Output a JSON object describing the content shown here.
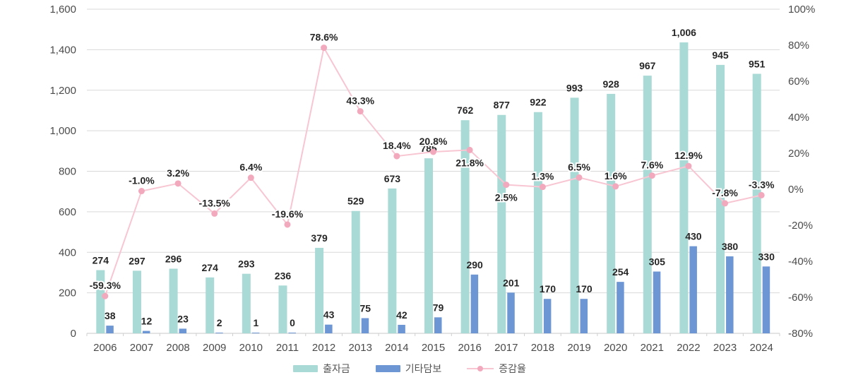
{
  "chart_data": {
    "type": "bar",
    "subtype": "grouped-bars-with-line",
    "title": "",
    "categories": [
      "2006",
      "2007",
      "2008",
      "2009",
      "2010",
      "2011",
      "2012",
      "2013",
      "2014",
      "2015",
      "2016",
      "2017",
      "2018",
      "2019",
      "2020",
      "2021",
      "2022",
      "2023",
      "2024"
    ],
    "series": [
      {
        "name": "출자금",
        "type": "bar",
        "color": "#a9dad6",
        "values": [
          274,
          297,
          296,
          274,
          293,
          236,
          379,
          529,
          673,
          785,
          762,
          877,
          922,
          993,
          928,
          967,
          1006,
          945,
          951
        ]
      },
      {
        "name": "기타담보",
        "type": "bar",
        "color": "#6d96d4",
        "values": [
          38,
          12,
          23,
          2,
          1,
          0,
          43,
          75,
          42,
          79,
          290,
          201,
          170,
          170,
          254,
          305,
          430,
          380,
          330
        ]
      },
      {
        "name": "증감율",
        "type": "line",
        "color": "#f8c6d3",
        "marker_color": "#f3a9bd",
        "axis": "right",
        "values": [
          -59.3,
          -1.0,
          3.2,
          -13.5,
          6.4,
          -19.6,
          78.6,
          43.3,
          18.4,
          20.8,
          21.8,
          2.5,
          1.3,
          6.5,
          1.6,
          7.6,
          12.9,
          -7.8,
          -3.3
        ],
        "label_side": [
          "above",
          "above",
          "above",
          "above",
          "above",
          "above",
          "above",
          "above",
          "above",
          "above",
          "below",
          "below",
          "above",
          "above",
          "above",
          "above",
          "above",
          "above",
          "above"
        ]
      }
    ],
    "left_axis": {
      "min": 0,
      "max": 1600,
      "step": 200,
      "tick_labels": [
        "1,600",
        "1,400",
        "1,200",
        "1,000",
        "800",
        "600",
        "400",
        "200",
        "0"
      ]
    },
    "right_axis": {
      "min": -80,
      "max": 100,
      "step": 20,
      "tick_labels": [
        "100%",
        "80%",
        "60%",
        "40%",
        "20%",
        "0%",
        "-20%",
        "-40%",
        "-60%",
        "-80%"
      ]
    },
    "legend": {
      "position": "bottom",
      "entries": [
        "출자금",
        "기타담보",
        "증감율"
      ]
    },
    "layout_hints": {
      "grid": "horizontal gridlines at left-axis ticks",
      "bar_render_note": "teal bar drawn at stacked height (출자금 + 기타담보); blue bar beside it shows 기타담보 only",
      "gridline_color": "#d9d9d9",
      "label_color": "#262626",
      "axis_label_color": "#4b4b4b"
    }
  }
}
